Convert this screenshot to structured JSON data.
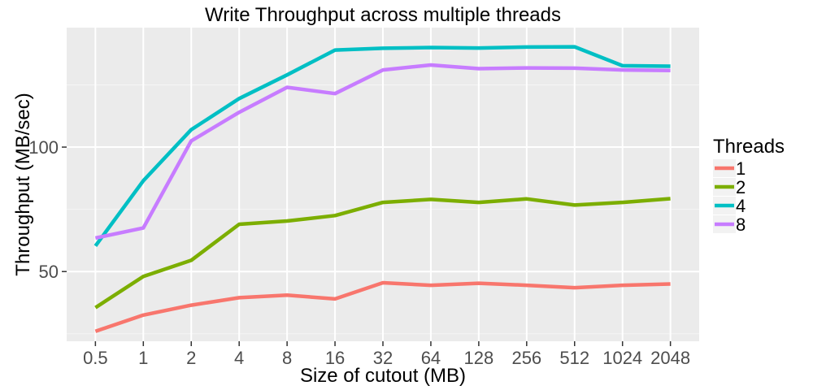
{
  "chart_data": {
    "type": "line",
    "title": "Write Throughput across multiple threads",
    "xlabel": "Size of cutout (MB)",
    "ylabel": "Throughput (MB/sec)",
    "categories": [
      "0.5",
      "1",
      "2",
      "4",
      "8",
      "16",
      "32",
      "64",
      "128",
      "256",
      "512",
      "1024",
      "2048"
    ],
    "yticks": [
      50,
      100
    ],
    "ylim": [
      22,
      148
    ],
    "grid": true,
    "legend": {
      "title": "Threads",
      "position": "right"
    },
    "series": [
      {
        "name": "1",
        "color": "#F8766D",
        "values": [
          26,
          32.5,
          36.5,
          39.5,
          40.5,
          39,
          45.5,
          44.5,
          45.3,
          44.5,
          43.5,
          44.5,
          45
        ]
      },
      {
        "name": "2",
        "color": "#7CAE00",
        "values": [
          35.5,
          48,
          54.5,
          69,
          70.3,
          72.5,
          77.8,
          79,
          77.8,
          79.2,
          76.7,
          77.8,
          79.3
        ]
      },
      {
        "name": "4",
        "color": "#00BFC4",
        "values": [
          60.3,
          86.5,
          107,
          119.5,
          129,
          139,
          139.7,
          140,
          139.8,
          140.2,
          140.3,
          132.7,
          132.5
        ]
      },
      {
        "name": "8",
        "color": "#C77CFF",
        "values": [
          63.5,
          67.5,
          102.5,
          114,
          124,
          121.5,
          131,
          133,
          131.5,
          131.8,
          131.7,
          131,
          130.8
        ]
      }
    ]
  }
}
